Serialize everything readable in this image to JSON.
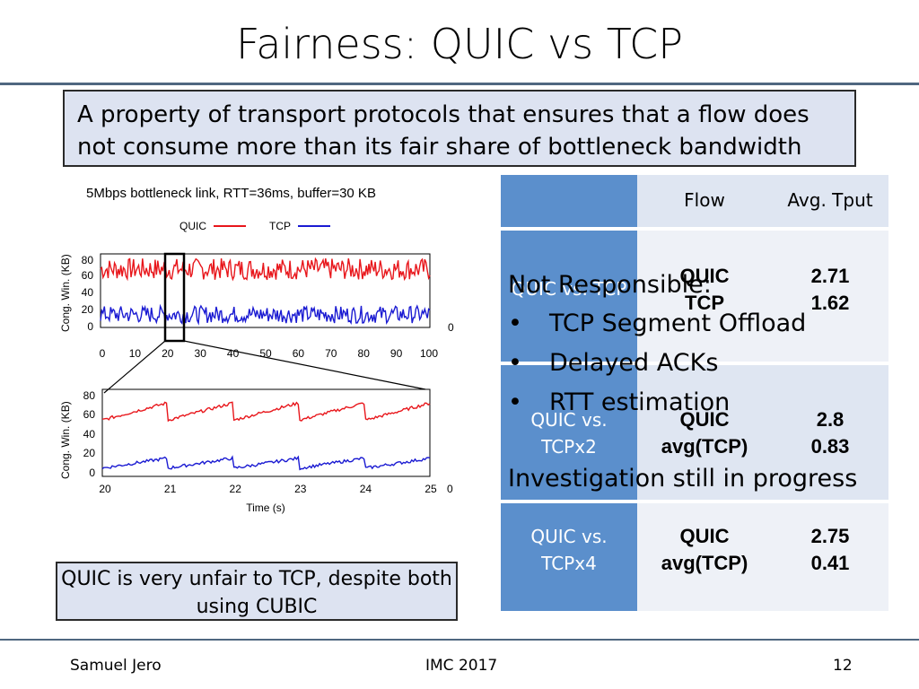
{
  "slide": {
    "title": "Fairness: QUIC vs TCP",
    "definition": "A property of transport protocols that ensures that a flow does not consume more than its fair share of bottleneck bandwidth",
    "conclusion": "QUIC is very unfair to TCP, despite both using CUBIC",
    "footer": {
      "author": "Samuel Jero",
      "venue": "IMC 2017",
      "page": "12"
    }
  },
  "chart_data": {
    "caption": "5Mbps bottleneck link, RTT=36ms, buffer=30 KB",
    "legend": [
      "QUIC",
      "TCP"
    ],
    "colors": {
      "QUIC": "#e8161b",
      "TCP": "#1a1ad2"
    },
    "top": {
      "type": "line",
      "ylabel": "Cong. Win. (KB)",
      "xticks": [
        "0",
        "10",
        "20",
        "30",
        "40",
        "50",
        "60",
        "70",
        "80",
        "90",
        "100"
      ],
      "yticks": [
        "0",
        "20",
        "40",
        "60",
        "80"
      ],
      "xlim": [
        0,
        100
      ],
      "ylim": [
        0,
        85
      ],
      "extra_tick": "0",
      "series": [
        {
          "name": "QUIC",
          "approx_range": [
            55,
            80
          ]
        },
        {
          "name": "TCP",
          "approx_range": [
            5,
            25
          ]
        }
      ]
    },
    "bottom": {
      "type": "line",
      "ylabel": "Cong. Win. (KB)",
      "xlabel": "Time (s)",
      "xticks": [
        "20",
        "21",
        "22",
        "23",
        "24",
        "25"
      ],
      "yticks": [
        "0",
        "20",
        "40",
        "60",
        "80"
      ],
      "xlim": [
        20,
        25
      ],
      "ylim": [
        0,
        85
      ],
      "extra_tick": "0",
      "series": [
        {
          "name": "QUIC",
          "approx_range": [
            55,
            72
          ]
        },
        {
          "name": "TCP",
          "approx_range": [
            8,
            18
          ]
        }
      ]
    }
  },
  "table": {
    "headers": [
      "Flow",
      "Avg. Tput"
    ],
    "rows": [
      {
        "label": "QUIC vs. TCP",
        "flows": [
          "QUIC",
          "TCP"
        ],
        "tputs": [
          "2.71",
          "1.62"
        ]
      },
      {
        "label": "QUIC vs. TCPx2",
        "flows": [
          "QUIC",
          "avg(TCP)"
        ],
        "tputs": [
          "2.8",
          "0.83"
        ]
      },
      {
        "label": "QUIC vs. TCPx4",
        "flows": [
          "QUIC",
          "avg(TCP)"
        ],
        "tputs": [
          "2.75",
          "0.41"
        ]
      }
    ]
  },
  "overlay": {
    "heading": "Not Responsible:",
    "bullets": [
      "TCP Segment Offload",
      "Delayed ACKs",
      "RTT estimation"
    ],
    "footer": "Investigation still in progress"
  }
}
